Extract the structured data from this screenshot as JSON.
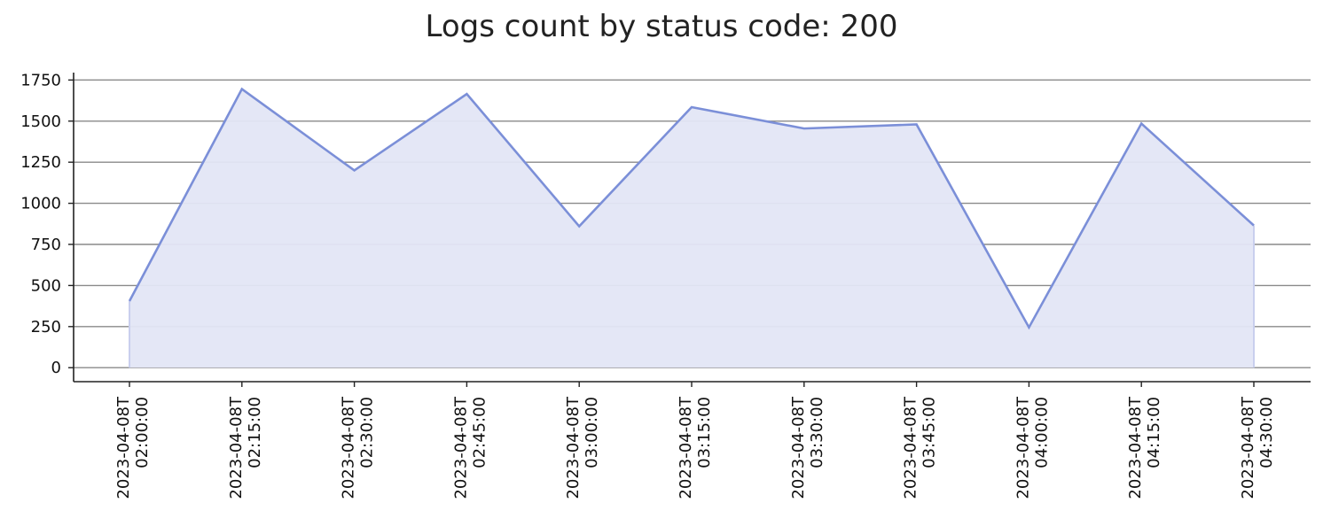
{
  "chart_data": {
    "type": "area",
    "title": "Logs count by status code: 200",
    "xlabel": "",
    "ylabel": "",
    "x": [
      "2023-04-08T02:00:00",
      "2023-04-08T02:15:00",
      "2023-04-08T02:30:00",
      "2023-04-08T02:45:00",
      "2023-04-08T03:00:00",
      "2023-04-08T03:15:00",
      "2023-04-08T03:30:00",
      "2023-04-08T03:45:00",
      "2023-04-08T04:00:00",
      "2023-04-08T04:15:00",
      "2023-04-08T04:30:00"
    ],
    "x_tick_labels": [
      [
        "2023-04-08T",
        "02:00:00"
      ],
      [
        "2023-04-08T",
        "02:15:00"
      ],
      [
        "2023-04-08T",
        "02:30:00"
      ],
      [
        "2023-04-08T",
        "02:45:00"
      ],
      [
        "2023-04-08T",
        "03:00:00"
      ],
      [
        "2023-04-08T",
        "03:15:00"
      ],
      [
        "2023-04-08T",
        "03:30:00"
      ],
      [
        "2023-04-08T",
        "03:45:00"
      ],
      [
        "2023-04-08T",
        "04:00:00"
      ],
      [
        "2023-04-08T",
        "04:15:00"
      ],
      [
        "2023-04-08T",
        "04:30:00"
      ]
    ],
    "series": [
      {
        "values": [
          405,
          1695,
          1200,
          1665,
          860,
          1585,
          1455,
          1480,
          245,
          1485,
          865
        ]
      }
    ],
    "y_ticks": [
      0,
      250,
      500,
      750,
      1000,
      1250,
      1500,
      1750
    ],
    "ylim": [
      -85,
      1795
    ],
    "grid": "horizontal",
    "colors": {
      "line": "#7b8fd8",
      "fill": "#e3e6f6",
      "grid": "#8a8a8a",
      "axis": "#222222"
    }
  }
}
